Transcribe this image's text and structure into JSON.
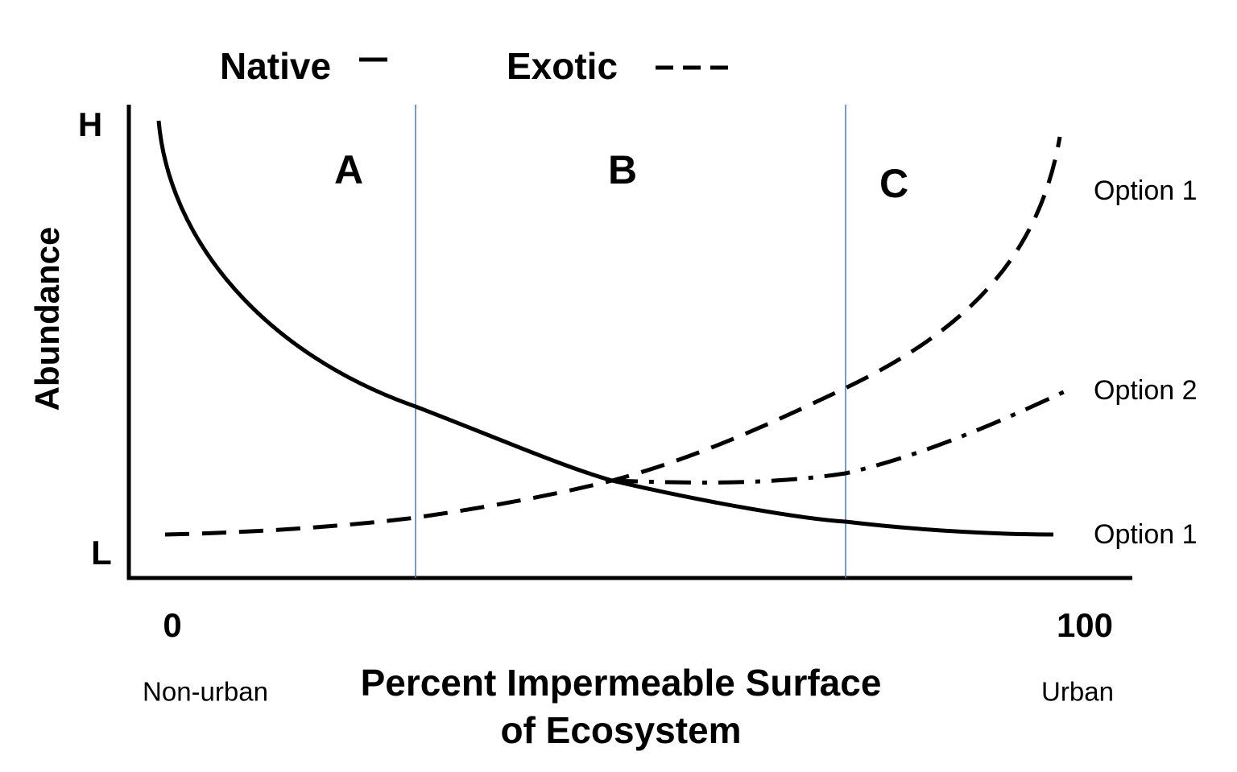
{
  "legend": {
    "native": "Native",
    "exotic": "Exotic"
  },
  "y_axis": {
    "title": "Abundance",
    "high": "H",
    "low": "L"
  },
  "x_axis": {
    "start": "0",
    "end": "100",
    "start_caption": "Non-urban",
    "end_caption": "Urban",
    "title_lines": [
      "Percent Impermeable Surface",
      "of Ecosystem"
    ]
  },
  "zones": [
    "A",
    "B",
    "C"
  ],
  "curve_labels": [
    "Option 1",
    "Option 2",
    "Option 1"
  ]
}
